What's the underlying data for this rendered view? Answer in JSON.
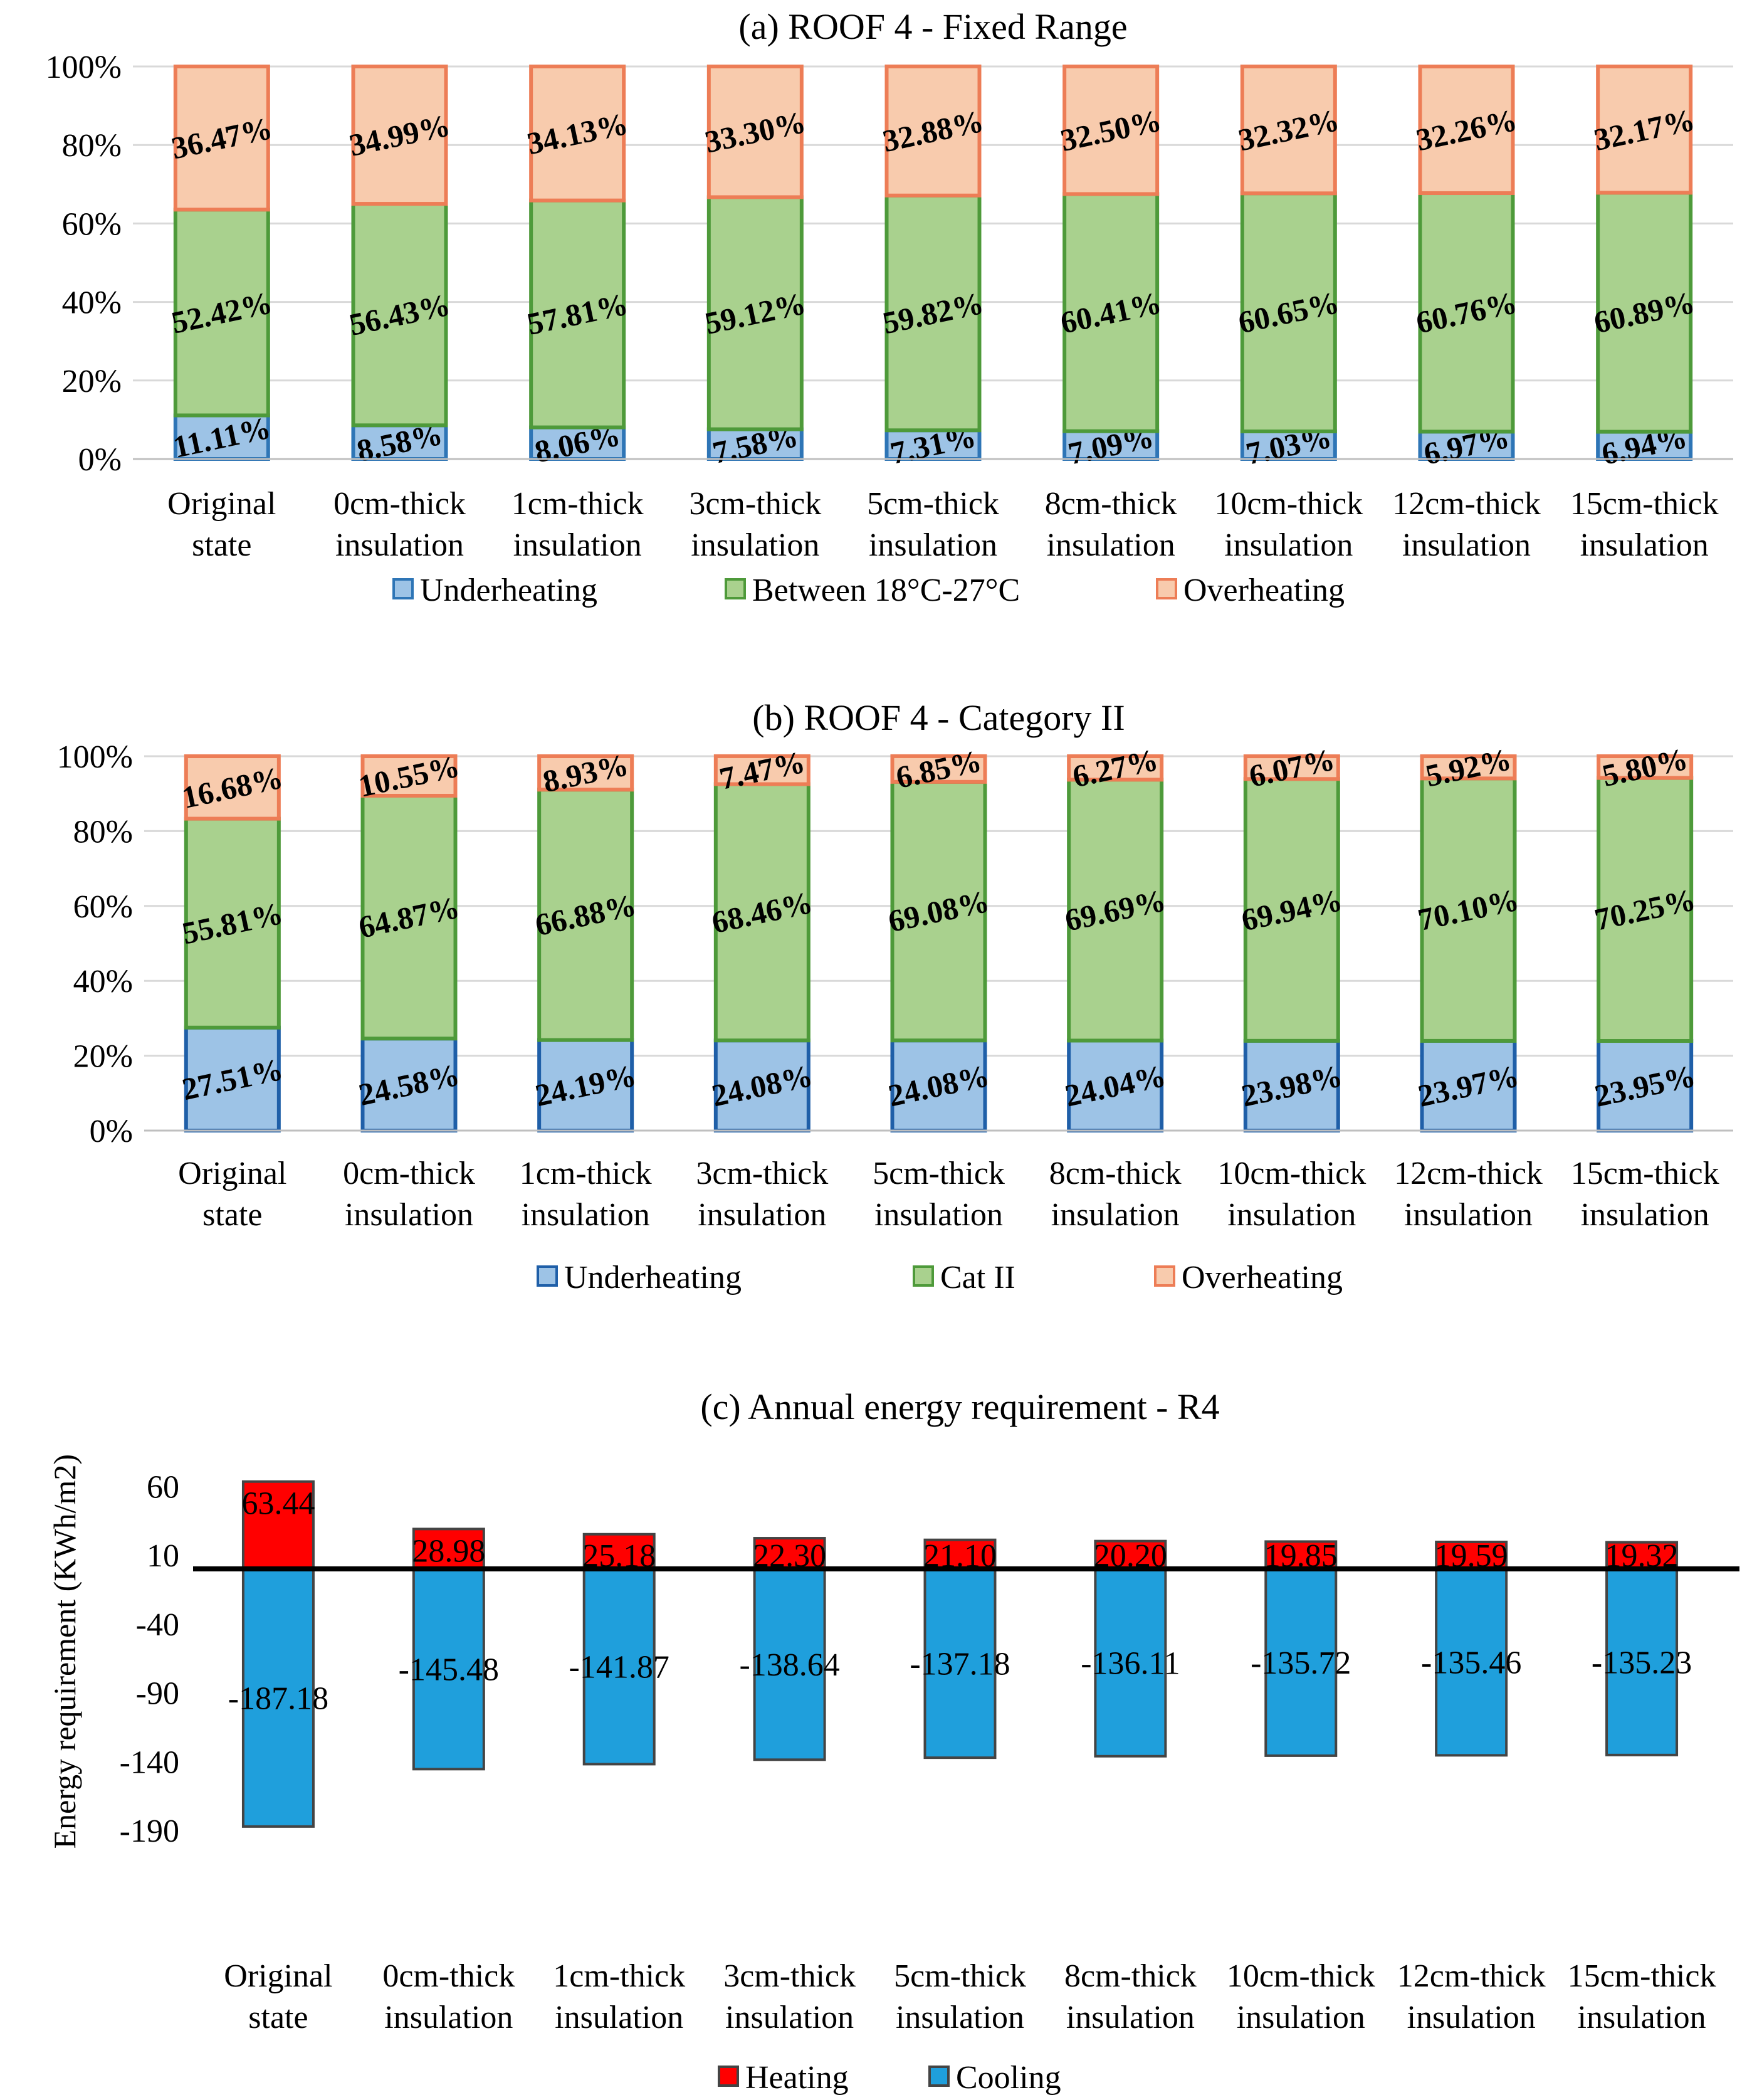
{
  "chart_data": [
    {
      "type": "bar",
      "stacked": true,
      "title": "(a) ROOF 4 - Fixed Range",
      "categories": [
        [
          "Original",
          "state"
        ],
        [
          "0cm-thick",
          "insulation"
        ],
        [
          "1cm-thick",
          "insulation"
        ],
        [
          "3cm-thick",
          "insulation"
        ],
        [
          "5cm-thick",
          "insulation"
        ],
        [
          "8cm-thick",
          "insulation"
        ],
        [
          "10cm-thick",
          "insulation"
        ],
        [
          "12cm-thick",
          "insulation"
        ],
        [
          "15cm-thick",
          "insulation"
        ]
      ],
      "yticks": [
        "0%",
        "20%",
        "40%",
        "60%",
        "80%",
        "100%"
      ],
      "ylim": [
        0,
        100
      ],
      "legend_position": "bottom",
      "series": [
        {
          "name": "Underheating",
          "values": [
            11.11,
            8.58,
            8.06,
            7.58,
            7.31,
            7.09,
            7.03,
            6.97,
            6.94
          ],
          "labels": [
            "11.11%",
            "8.58%",
            "8.06%",
            "7.58%",
            "7.31%",
            "7.09%",
            "7.03%",
            "6.97%",
            "6.94%"
          ],
          "fill": "#9dc3e6",
          "stroke": "#2e75b6"
        },
        {
          "name": "Between 18°C-27°C",
          "values": [
            52.42,
            56.43,
            57.81,
            59.12,
            59.82,
            60.41,
            60.65,
            60.76,
            60.89
          ],
          "labels": [
            "52.42%",
            "56.43%",
            "57.81%",
            "59.12%",
            "59.82%",
            "60.41%",
            "60.65%",
            "60.76%",
            "60.89%"
          ],
          "fill": "#a9d18e",
          "stroke": "#4e9a3a"
        },
        {
          "name": "Overheating",
          "values": [
            36.47,
            34.99,
            34.13,
            33.3,
            32.88,
            32.5,
            32.32,
            32.26,
            32.17
          ],
          "labels": [
            "36.47%",
            "34.99%",
            "34.13%",
            "33.30%",
            "32.88%",
            "32.50%",
            "32.32%",
            "32.26%",
            "32.17%"
          ],
          "fill": "#f8cbad",
          "stroke": "#ed7d56"
        }
      ]
    },
    {
      "type": "bar",
      "stacked": true,
      "title": "(b) ROOF 4 - Category II",
      "categories": [
        [
          "Original",
          "state"
        ],
        [
          "0cm-thick",
          "insulation"
        ],
        [
          "1cm-thick",
          "insulation"
        ],
        [
          "3cm-thick",
          "insulation"
        ],
        [
          "5cm-thick",
          "insulation"
        ],
        [
          "8cm-thick",
          "insulation"
        ],
        [
          "10cm-thick",
          "insulation"
        ],
        [
          "12cm-thick",
          "insulation"
        ],
        [
          "15cm-thick",
          "insulation"
        ]
      ],
      "yticks": [
        "0%",
        "20%",
        "40%",
        "60%",
        "80%",
        "100%"
      ],
      "ylim": [
        0,
        100
      ],
      "legend_position": "bottom",
      "series": [
        {
          "name": "Underheating",
          "values": [
            27.51,
            24.58,
            24.19,
            24.08,
            24.08,
            24.04,
            23.98,
            23.97,
            23.95
          ],
          "labels": [
            "27.51%",
            "24.58%",
            "24.19%",
            "24.08%",
            "24.08%",
            "24.04%",
            "23.98%",
            "23.97%",
            "23.95%"
          ],
          "fill": "#9dc3e6",
          "stroke": "#1f5fa8"
        },
        {
          "name": "Cat II",
          "values": [
            55.81,
            64.87,
            66.88,
            68.46,
            69.08,
            69.69,
            69.94,
            70.1,
            70.25
          ],
          "labels": [
            "55.81%",
            "64.87%",
            "66.88%",
            "68.46%",
            "69.08%",
            "69.69%",
            "69.94%",
            "70.10%",
            "70.25%"
          ],
          "fill": "#a9d18e",
          "stroke": "#4e9a3a"
        },
        {
          "name": "Overheating",
          "values": [
            16.68,
            10.55,
            8.93,
            7.47,
            6.85,
            6.27,
            6.07,
            5.92,
            5.8
          ],
          "labels": [
            "16.68%",
            "10.55%",
            "8.93%",
            "7.47%",
            "6.85%",
            "6.27%",
            "6.07%",
            "5.92%",
            "5.80%"
          ],
          "fill": "#f8cbad",
          "stroke": "#ed7d56"
        }
      ]
    },
    {
      "type": "bar",
      "title": "(c) Annual energy requirement - R4",
      "ylabel": "Energy requirement (KWh/m2)",
      "categories": [
        [
          "Original",
          "state"
        ],
        [
          "0cm-thick",
          "insulation"
        ],
        [
          "1cm-thick",
          "insulation"
        ],
        [
          "3cm-thick",
          "insulation"
        ],
        [
          "5cm-thick",
          "insulation"
        ],
        [
          "8cm-thick",
          "insulation"
        ],
        [
          "10cm-thick",
          "insulation"
        ],
        [
          "12cm-thick",
          "insulation"
        ],
        [
          "15cm-thick",
          "insulation"
        ]
      ],
      "yticks": [
        "60",
        "10",
        "-40",
        "-90",
        "-140",
        "-190"
      ],
      "ylim": [
        -190,
        70
      ],
      "legend_position": "bottom",
      "series": [
        {
          "name": "Heating",
          "values": [
            63.44,
            28.98,
            25.18,
            22.3,
            21.1,
            20.2,
            19.85,
            19.59,
            19.32
          ],
          "labels": [
            "63.44",
            "28.98",
            "25.18",
            "22.30",
            "21.10",
            "20.20",
            "19.85",
            "19.59",
            "19.32"
          ],
          "fill": "#ff0000",
          "stroke": "#444444"
        },
        {
          "name": "Cooling",
          "values": [
            -187.18,
            -145.48,
            -141.87,
            -138.64,
            -137.18,
            -136.11,
            -135.72,
            -135.46,
            -135.23
          ],
          "labels": [
            "-187.18",
            "-145.48",
            "-141.87",
            "-138.64",
            "-137.18",
            "-136.11",
            "-135.72",
            "-135.46",
            "-135.23"
          ],
          "fill": "#1f9fdc",
          "stroke": "#444444"
        }
      ]
    }
  ]
}
